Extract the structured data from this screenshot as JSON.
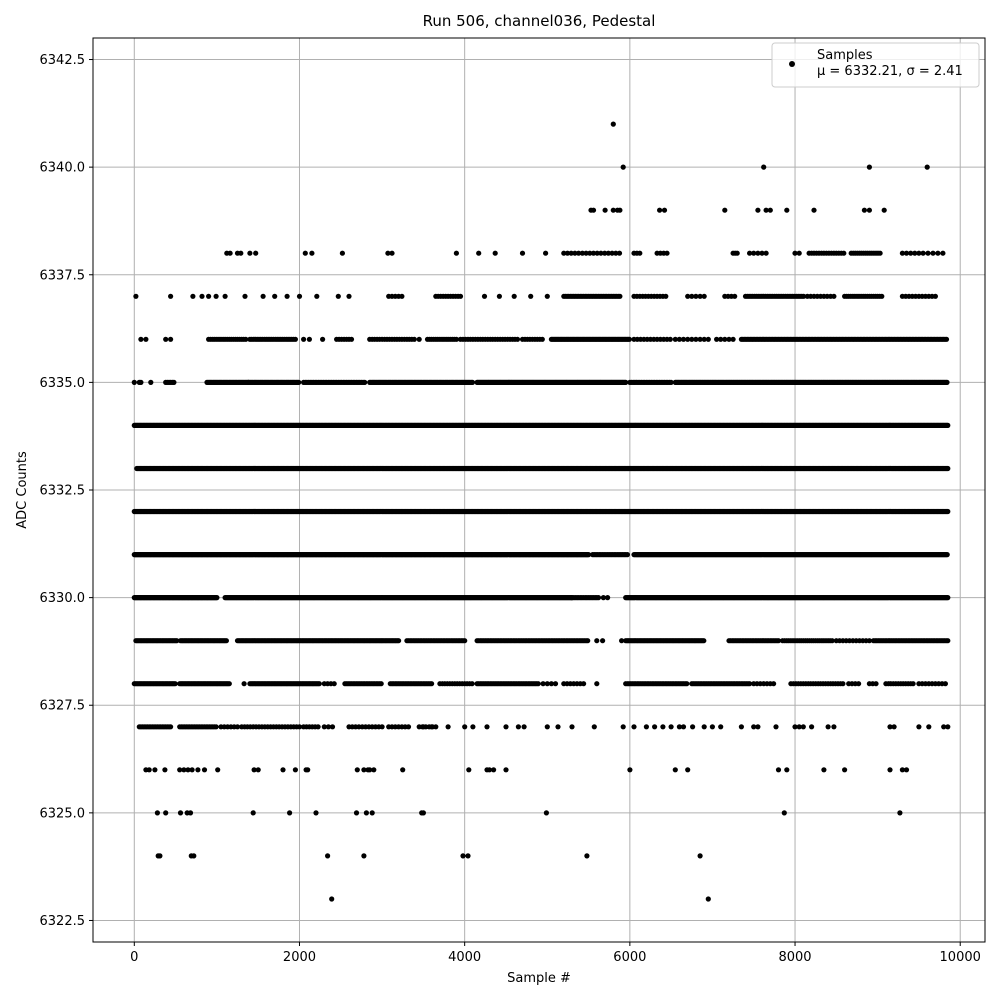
{
  "chart_data": {
    "type": "scatter",
    "title": "Run 506, channel036, Pedestal",
    "xlabel": "Sample #",
    "ylabel": "ADC Counts",
    "xlim": [
      -500,
      10300
    ],
    "ylim": [
      6322.0,
      6343.0
    ],
    "xticks": [
      0,
      2000,
      4000,
      6000,
      8000,
      10000
    ],
    "xtick_labels": [
      "0",
      "2000",
      "4000",
      "6000",
      "8000",
      "10000"
    ],
    "yticks": [
      6322.5,
      6325.0,
      6327.5,
      6330.0,
      6332.5,
      6335.0,
      6337.5,
      6340.0,
      6342.5
    ],
    "ytick_labels": [
      "6322.5",
      "6325.0",
      "6327.5",
      "6330.0",
      "6332.5",
      "6335.0",
      "6337.5",
      "6340.0",
      "6342.5"
    ],
    "grid": true,
    "legend_position": "top-right",
    "legend": {
      "label": "Samples",
      "stats": "μ = 6332.21, σ = 2.41"
    },
    "marker_color": "#000000",
    "series": [
      {
        "name": "Samples",
        "rows": [
          {
            "y": 6341,
            "x": [
              5800
            ]
          },
          {
            "y": 6340,
            "x": [
              5920,
              7620,
              8900,
              9600
            ]
          },
          {
            "y": 6339,
            "x": [
              5530,
              5560,
              5700,
              5800,
              5850,
              5880,
              6360,
              6420,
              7150,
              7550,
              7650,
              7700,
              7900,
              8230,
              8840,
              8900,
              9080
            ]
          },
          {
            "y": 6338,
            "x": [
              1120,
              1160,
              1250,
              1290,
              1400,
              1470,
              2070,
              2150,
              2520,
              3070,
              3120,
              3900,
              4170,
              4370,
              4700,
              4980
            ],
            "ranges": [
              [
                5200,
                5900,
                45
              ],
              [
                6050,
                6120,
                35
              ],
              [
                6330,
                6480,
                40
              ],
              [
                7250,
                7300,
                25
              ],
              [
                7450,
                7650,
                50
              ],
              [
                8000,
                8050,
                50
              ],
              [
                8170,
                8600,
                30
              ],
              [
                8680,
                9050,
                25
              ],
              [
                9300,
                9500,
                50
              ],
              [
                9550,
                9800,
                60
              ]
            ]
          },
          {
            "y": 6337,
            "x": [
              20,
              440,
              710,
              820,
              900,
              990,
              1100,
              1340,
              1560,
              1700,
              1850,
              2000,
              2210,
              2470,
              2600,
              4240,
              4420,
              4600,
              4800,
              5000
            ],
            "ranges": [
              [
                3080,
                3250,
                40
              ],
              [
                3650,
                3970,
                30
              ],
              [
                5200,
                5880,
                20
              ],
              [
                6050,
                6450,
                35
              ],
              [
                6700,
                6900,
                50
              ],
              [
                7150,
                7300,
                40
              ],
              [
                7400,
                8120,
                22
              ],
              [
                8150,
                8500,
                40
              ],
              [
                8600,
                9050,
                25
              ],
              [
                9300,
                9700,
                40
              ]
            ]
          },
          {
            "y": 6336,
            "x": [
              80,
              140,
              380,
              440,
              2050,
              2120,
              2280,
              3450
            ],
            "ranges": [
              [
                900,
                1350,
                25
              ],
              [
                1400,
                1950,
                22
              ],
              [
                2450,
                2650,
                30
              ],
              [
                2850,
                3400,
                30
              ],
              [
                3550,
                3900,
                25
              ],
              [
                3950,
                4650,
                30
              ],
              [
                4700,
                4950,
                30
              ],
              [
                5050,
                6000,
                15
              ],
              [
                6050,
                6500,
                40
              ],
              [
                6550,
                6950,
                50
              ],
              [
                7050,
                7250,
                50
              ],
              [
                7350,
                9850,
                18
              ]
            ]
          },
          {
            "y": 6335,
            "x": [
              0,
              60,
              80,
              200,
              1380
            ],
            "ranges": [
              [
                380,
                480,
                20
              ],
              [
                880,
                2000,
                15
              ],
              [
                2050,
                2800,
                20
              ],
              [
                2850,
                4100,
                15
              ],
              [
                4150,
                5950,
                12
              ],
              [
                6000,
                6500,
                20
              ],
              [
                6550,
                9850,
                14
              ]
            ]
          },
          {
            "y": 6334,
            "x": [],
            "ranges": [
              [
                0,
                9850,
                10
              ]
            ]
          },
          {
            "y": 6333,
            "x": [],
            "ranges": [
              [
                30,
                9850,
                10
              ]
            ]
          },
          {
            "y": 6332,
            "x": [],
            "ranges": [
              [
                0,
                9850,
                10
              ]
            ]
          },
          {
            "y": 6331,
            "x": [],
            "ranges": [
              [
                0,
                5500,
                10
              ],
              [
                5550,
                5980,
                20
              ],
              [
                6050,
                9850,
                12
              ]
            ]
          },
          {
            "y": 6330,
            "x": [
              5680,
              5730
            ],
            "ranges": [
              [
                0,
                1000,
                10
              ],
              [
                1100,
                5300,
                12
              ],
              [
                5300,
                5620,
                20
              ],
              [
                5950,
                9850,
                12
              ]
            ]
          },
          {
            "y": 6329,
            "x": [
              5900,
              5600,
              5670
            ],
            "ranges": [
              [
                20,
                520,
                15
              ],
              [
                560,
                1120,
                15
              ],
              [
                1250,
                3200,
                15
              ],
              [
                3300,
                4000,
                20
              ],
              [
                4150,
                5500,
                20
              ],
              [
                5950,
                6900,
                15
              ],
              [
                7200,
                7800,
                20
              ],
              [
                7850,
                8450,
                25
              ],
              [
                8500,
                8900,
                40
              ],
              [
                8950,
                9850,
                20
              ]
            ]
          },
          {
            "y": 6328,
            "x": [
              1330,
              5600
            ],
            "ranges": [
              [
                0,
                500,
                15
              ],
              [
                550,
                1150,
                15
              ],
              [
                1400,
                2250,
                15
              ],
              [
                2300,
                2450,
                40
              ],
              [
                2550,
                3000,
                20
              ],
              [
                3100,
                3600,
                20
              ],
              [
                3700,
                4100,
                30
              ],
              [
                4150,
                4900,
                20
              ],
              [
                4950,
                5100,
                50
              ],
              [
                5200,
                5450,
                40
              ],
              [
                5950,
                6700,
                20
              ],
              [
                6750,
                7450,
                20
              ],
              [
                7500,
                7750,
                40
              ],
              [
                7950,
                8600,
                30
              ],
              [
                8650,
                8800,
                40
              ],
              [
                8900,
                9000,
                40
              ],
              [
                9100,
                9450,
                30
              ],
              [
                9500,
                9850,
                40
              ]
            ]
          },
          {
            "y": 6327,
            "x": [
              3500,
              3600,
              3800,
              4000,
              4100,
              4270,
              4500,
              4650,
              4720,
              5000,
              5130,
              5300,
              5570,
              5920,
              6050,
              6200,
              6300,
              6400,
              6500,
              6600,
              6650,
              6760,
              6900,
              7000,
              7100,
              7350,
              7500,
              7550,
              7770,
              8000,
              8050,
              8100,
              8200,
              8400,
              8470,
              9150,
              9200,
              9500,
              9620,
              9800,
              9850
            ],
            "ranges": [
              [
                60,
                450,
                20
              ],
              [
                550,
                1000,
                20
              ],
              [
                1050,
                1250,
                40
              ],
              [
                1300,
                2000,
                35
              ],
              [
                2050,
                2250,
                35
              ],
              [
                2300,
                2400,
                50
              ],
              [
                2600,
                3000,
                40
              ],
              [
                3080,
                3350,
                40
              ],
              [
                3450,
                3650,
                40
              ]
            ]
          },
          {
            "y": 6326,
            "x": [
              140,
              180,
              250,
              370,
              550,
              600,
              650,
              700,
              770,
              850,
              1010,
              1450,
              1500,
              1800,
              1950,
              2080,
              2100,
              2700,
              2780,
              2830,
              2850,
              2900,
              3250,
              4050,
              4270,
              4300,
              4350,
              4500,
              6000,
              6550,
              6700,
              7800,
              7900,
              8350,
              8600,
              9150,
              9300,
              9350
            ]
          },
          {
            "y": 6325,
            "x": [
              280,
              380,
              560,
              640,
              680,
              1440,
              1880,
              2200,
              2690,
              2810,
              2880,
              3480,
              3500,
              4990,
              7870,
              9270
            ]
          },
          {
            "y": 6324,
            "x": [
              290,
              310,
              690,
              720,
              2340,
              2780,
              3980,
              4040,
              5480,
              6850
            ]
          },
          {
            "y": 6323,
            "x": [
              2390,
              6950
            ]
          }
        ]
      }
    ]
  }
}
